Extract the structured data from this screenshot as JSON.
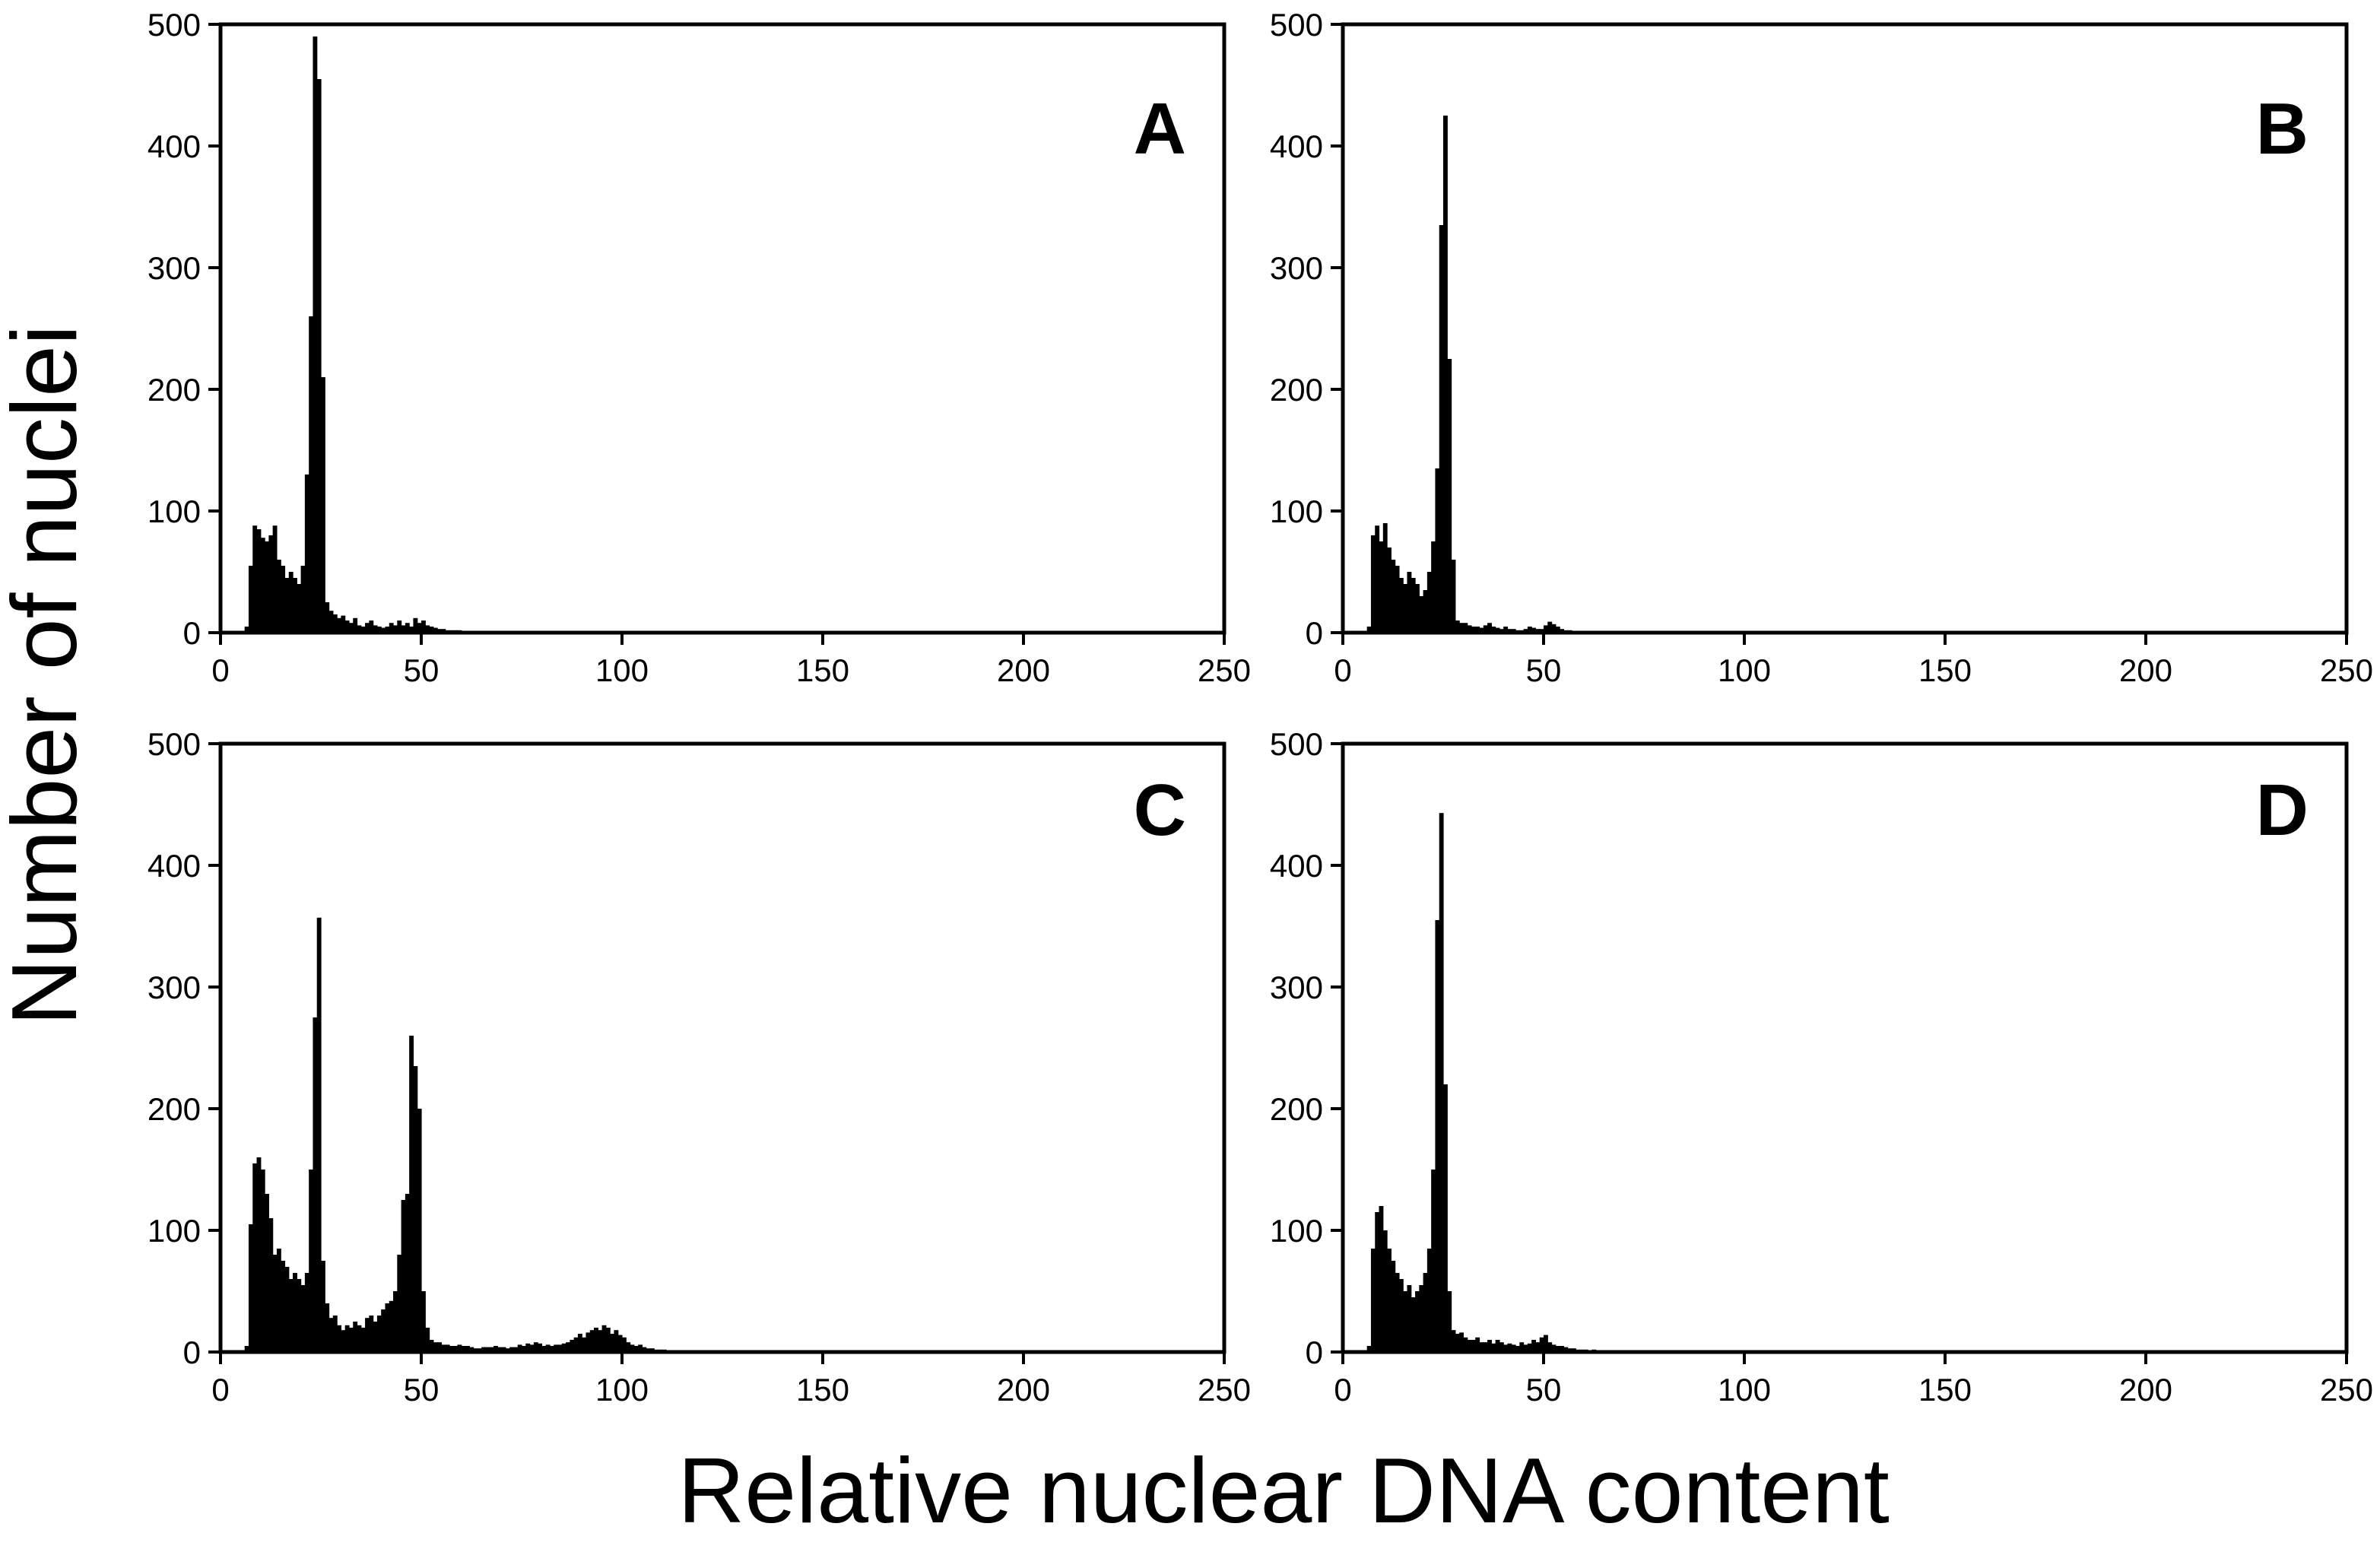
{
  "figure": {
    "ylabel": "Number of nuclei",
    "xlabel": "Relative nuclear DNA content"
  },
  "style": {
    "bar_color": "#000000",
    "axis_color": "#000000",
    "background": "#ffffff"
  },
  "chart_data": [
    {
      "type": "bar",
      "panel": "A",
      "xlim": [
        0,
        250
      ],
      "ylim": [
        0,
        500
      ],
      "xticks": [
        "0",
        "50",
        "100",
        "150",
        "200",
        "250"
      ],
      "yticks": [
        "0",
        "100",
        "200",
        "300",
        "400",
        "500"
      ],
      "bin_width": 1,
      "x": [
        6,
        7,
        8,
        9,
        10,
        11,
        12,
        13,
        14,
        15,
        16,
        17,
        18,
        19,
        20,
        21,
        22,
        23,
        24,
        25,
        26,
        27,
        28,
        29,
        30,
        31,
        32,
        33,
        34,
        35,
        36,
        37,
        38,
        39,
        40,
        41,
        42,
        43,
        44,
        45,
        46,
        47,
        48,
        49,
        50,
        51,
        52,
        53,
        54,
        55,
        56,
        57,
        58,
        59,
        60,
        61,
        62,
        63,
        64,
        65,
        66,
        67,
        68,
        69,
        70,
        72,
        75,
        78,
        80,
        85,
        90,
        95,
        100,
        110,
        120
      ],
      "values": [
        5,
        55,
        88,
        85,
        78,
        75,
        80,
        88,
        60,
        55,
        45,
        50,
        45,
        40,
        55,
        130,
        260,
        490,
        455,
        210,
        25,
        18,
        15,
        12,
        14,
        10,
        8,
        12,
        6,
        5,
        8,
        10,
        6,
        5,
        4,
        5,
        8,
        6,
        10,
        6,
        8,
        5,
        12,
        8,
        10,
        6,
        5,
        4,
        3,
        3,
        2,
        2,
        2,
        2,
        1,
        1,
        1,
        1,
        1,
        1,
        1,
        1,
        1,
        1,
        1,
        1,
        1,
        1,
        1,
        1,
        1,
        1,
        1,
        1,
        1
      ]
    },
    {
      "type": "bar",
      "panel": "B",
      "xlim": [
        0,
        250
      ],
      "ylim": [
        0,
        500
      ],
      "xticks": [
        "0",
        "50",
        "100",
        "150",
        "200",
        "250"
      ],
      "yticks": [
        "0",
        "100",
        "200",
        "300",
        "400",
        "500"
      ],
      "bin_width": 1,
      "x": [
        6,
        7,
        8,
        9,
        10,
        11,
        12,
        13,
        14,
        15,
        16,
        17,
        18,
        19,
        20,
        21,
        22,
        23,
        24,
        25,
        26,
        27,
        28,
        29,
        30,
        31,
        32,
        33,
        34,
        35,
        36,
        37,
        38,
        39,
        40,
        41,
        42,
        43,
        44,
        45,
        46,
        47,
        48,
        49,
        50,
        51,
        52,
        53,
        54,
        55,
        56,
        57,
        58,
        59,
        60,
        62,
        65,
        70
      ],
      "values": [
        5,
        80,
        88,
        75,
        90,
        70,
        60,
        55,
        45,
        40,
        50,
        45,
        40,
        30,
        35,
        50,
        75,
        135,
        335,
        425,
        225,
        60,
        10,
        8,
        8,
        6,
        5,
        5,
        4,
        6,
        8,
        5,
        4,
        3,
        5,
        3,
        3,
        2,
        2,
        3,
        5,
        4,
        3,
        3,
        6,
        9,
        7,
        5,
        3,
        2,
        2,
        1,
        1,
        1,
        1,
        1,
        1,
        1
      ]
    },
    {
      "type": "bar",
      "panel": "C",
      "xlim": [
        0,
        250
      ],
      "ylim": [
        0,
        500
      ],
      "xticks": [
        "0",
        "50",
        "100",
        "150",
        "200",
        "250"
      ],
      "yticks": [
        "0",
        "100",
        "200",
        "300",
        "400",
        "500"
      ],
      "bin_width": 1,
      "x": [
        6,
        7,
        8,
        9,
        10,
        11,
        12,
        13,
        14,
        15,
        16,
        17,
        18,
        19,
        20,
        21,
        22,
        23,
        24,
        25,
        26,
        27,
        28,
        29,
        30,
        31,
        32,
        33,
        34,
        35,
        36,
        37,
        38,
        39,
        40,
        41,
        42,
        43,
        44,
        45,
        46,
        47,
        48,
        49,
        50,
        51,
        52,
        53,
        54,
        55,
        56,
        57,
        58,
        59,
        60,
        61,
        62,
        63,
        64,
        65,
        66,
        67,
        68,
        69,
        70,
        71,
        72,
        73,
        74,
        75,
        76,
        77,
        78,
        79,
        80,
        81,
        82,
        83,
        84,
        85,
        86,
        87,
        88,
        89,
        90,
        91,
        92,
        93,
        94,
        95,
        96,
        97,
        98,
        99,
        100,
        101,
        102,
        103,
        104,
        105,
        106,
        107,
        108,
        109,
        110,
        115,
        120,
        125,
        130
      ],
      "values": [
        5,
        105,
        155,
        160,
        150,
        130,
        110,
        80,
        85,
        75,
        70,
        60,
        65,
        60,
        55,
        65,
        150,
        275,
        357,
        75,
        40,
        28,
        30,
        22,
        18,
        22,
        20,
        25,
        22,
        20,
        28,
        30,
        25,
        30,
        35,
        40,
        42,
        50,
        80,
        125,
        130,
        260,
        235,
        200,
        50,
        20,
        10,
        8,
        8,
        6,
        6,
        5,
        5,
        6,
        5,
        5,
        4,
        3,
        3,
        4,
        4,
        4,
        5,
        4,
        4,
        3,
        4,
        4,
        6,
        5,
        7,
        6,
        8,
        7,
        5,
        6,
        5,
        6,
        6,
        7,
        8,
        10,
        12,
        15,
        12,
        16,
        18,
        20,
        18,
        22,
        20,
        15,
        18,
        14,
        12,
        8,
        6,
        5,
        6,
        4,
        3,
        3,
        2,
        2,
        2,
        1,
        1,
        1,
        1
      ]
    },
    {
      "type": "bar",
      "panel": "D",
      "xlim": [
        0,
        250
      ],
      "ylim": [
        0,
        500
      ],
      "xticks": [
        "0",
        "50",
        "100",
        "150",
        "200",
        "250"
      ],
      "yticks": [
        "0",
        "100",
        "200",
        "300",
        "400",
        "500"
      ],
      "bin_width": 1,
      "x": [
        6,
        7,
        8,
        9,
        10,
        11,
        12,
        13,
        14,
        15,
        16,
        17,
        18,
        19,
        20,
        21,
        22,
        23,
        24,
        25,
        26,
        27,
        28,
        29,
        30,
        31,
        32,
        33,
        34,
        35,
        36,
        37,
        38,
        39,
        40,
        41,
        42,
        43,
        44,
        45,
        46,
        47,
        48,
        49,
        50,
        51,
        52,
        53,
        54,
        55,
        56,
        57,
        58,
        59,
        60,
        62,
        65,
        70,
        75,
        80,
        85
      ],
      "values": [
        5,
        85,
        115,
        120,
        100,
        85,
        75,
        65,
        60,
        50,
        55,
        45,
        50,
        55,
        65,
        85,
        150,
        355,
        443,
        220,
        50,
        18,
        15,
        16,
        12,
        10,
        10,
        12,
        8,
        8,
        10,
        7,
        10,
        8,
        6,
        7,
        6,
        5,
        8,
        6,
        7,
        10,
        8,
        12,
        14,
        8,
        6,
        5,
        5,
        4,
        3,
        3,
        2,
        2,
        2,
        2,
        1,
        1,
        1,
        1,
        1
      ]
    }
  ]
}
